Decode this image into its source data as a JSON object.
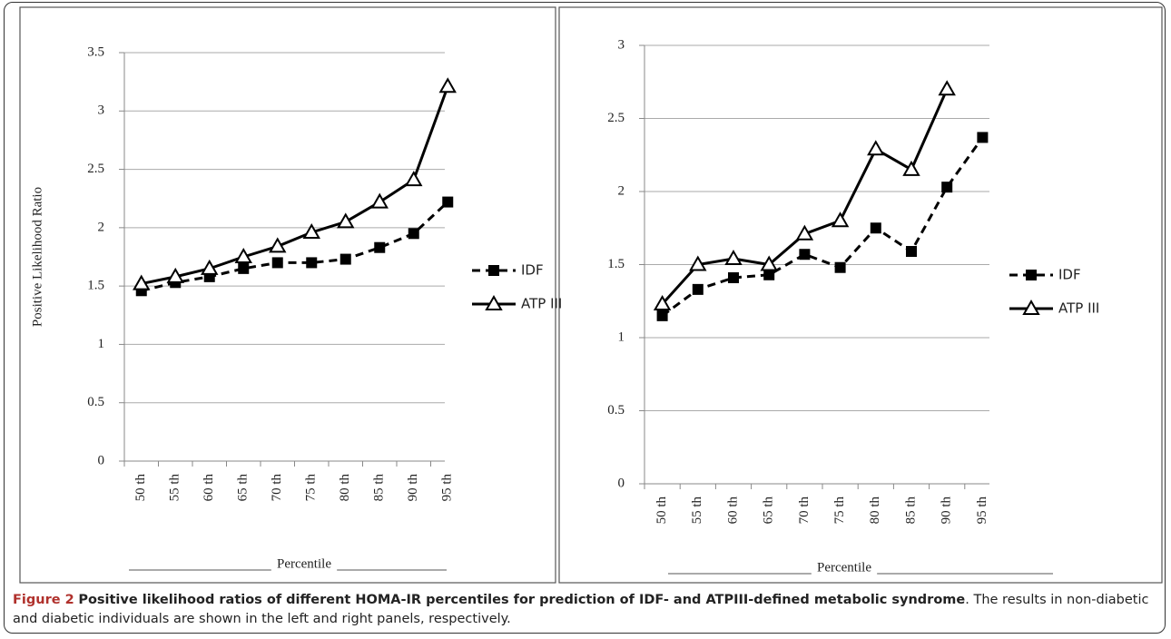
{
  "chart_data": [
    {
      "type": "line",
      "ylabel": "Positive Likelihood Ratio",
      "xlabel": "Percentile",
      "categories": [
        "50 th",
        "55 th",
        "60 th",
        "65 th",
        "70 th",
        "75 th",
        "80 th",
        "85 th",
        "90 th",
        "95 th"
      ],
      "series": [
        {
          "name": "IDF",
          "color": "#000000",
          "dash": true,
          "marker": "square",
          "values": [
            1.46,
            1.53,
            1.58,
            1.65,
            1.7,
            1.7,
            1.73,
            1.83,
            1.95,
            2.22
          ]
        },
        {
          "name": "ATP III",
          "color": "#000000",
          "dash": false,
          "marker": "triangle",
          "values": [
            1.52,
            1.58,
            1.65,
            1.75,
            1.84,
            1.96,
            2.05,
            2.22,
            2.41,
            3.21
          ]
        }
      ],
      "ylim": [
        0,
        3.5
      ],
      "yticks": [
        0,
        0.5,
        1,
        1.5,
        2,
        2.5,
        3,
        3.5
      ],
      "grid": true,
      "legend": "right"
    },
    {
      "type": "line",
      "xlabel": "Percentile",
      "categories": [
        "50 th",
        "55 th",
        "60 th",
        "65 th",
        "70 th",
        "75 th",
        "80 th",
        "85 th",
        "90 th",
        "95 th"
      ],
      "series": [
        {
          "name": "IDF",
          "color": "#000000",
          "dash": true,
          "marker": "square",
          "values": [
            1.15,
            1.33,
            1.41,
            1.43,
            1.57,
            1.48,
            1.75,
            1.59,
            2.03,
            2.37
          ]
        },
        {
          "name": "ATP III",
          "color": "#000000",
          "dash": false,
          "marker": "triangle",
          "values": [
            1.23,
            1.5,
            1.54,
            1.5,
            1.71,
            1.8,
            2.29,
            2.15,
            2.7,
            null
          ]
        }
      ],
      "ylim": [
        0,
        3
      ],
      "yticks": [
        0,
        0.5,
        1,
        1.5,
        2,
        2.5,
        3
      ],
      "grid": true,
      "legend": "right"
    }
  ],
  "caption": {
    "label": "Figure 2",
    "title": "Positive likelihood ratios of different HOMA-IR percentiles for prediction of IDF- and ATPIII-defined metabolic syndrome",
    "text": ". The results in non-diabetic and diabetic individuals are shown in the left and right panels, respectively."
  }
}
